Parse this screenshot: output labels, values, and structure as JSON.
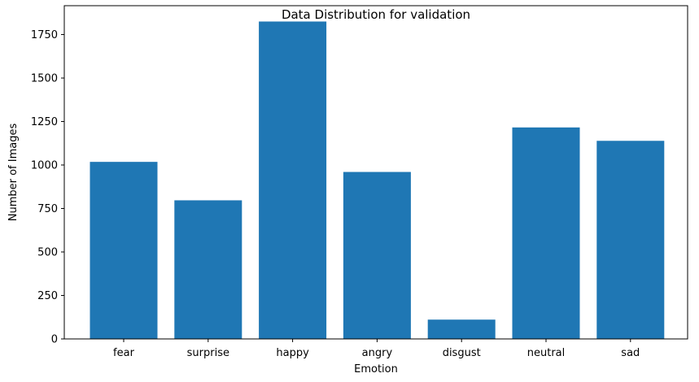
{
  "chart_data": {
    "type": "bar",
    "title": "Data Distribution for validation",
    "xlabel": "Emotion",
    "ylabel": "Number of Images",
    "categories": [
      "fear",
      "surprise",
      "happy",
      "angry",
      "disgust",
      "neutral",
      "sad"
    ],
    "values": [
      1018,
      797,
      1825,
      960,
      111,
      1216,
      1139
    ],
    "ylim": [
      0,
      1916
    ],
    "yticks": [
      0,
      250,
      500,
      750,
      1000,
      1250,
      1500,
      1750
    ],
    "bar_color": "#1f77b4",
    "grid": false,
    "legend": "none"
  }
}
